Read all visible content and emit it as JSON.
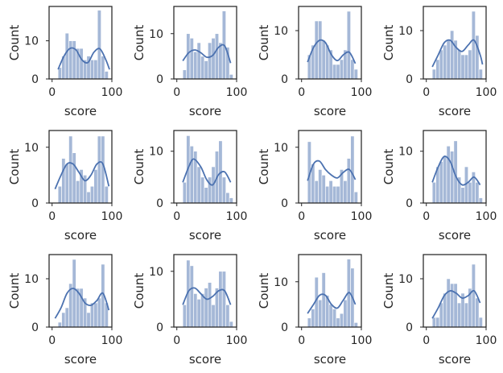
{
  "chart_data": [
    {
      "type": "bar",
      "kind": "histogram+kde",
      "xlabel": "score",
      "ylabel": "Count",
      "xticks": [
        0,
        100
      ],
      "yticks": [
        0,
        10
      ],
      "xlim": [
        -5,
        100
      ],
      "ylim": [
        0,
        19
      ],
      "bins": [
        [
          10,
          16,
          3
        ],
        [
          16,
          22,
          6
        ],
        [
          22,
          28,
          12
        ],
        [
          28,
          34,
          10
        ],
        [
          34,
          40,
          10
        ],
        [
          40,
          46,
          8
        ],
        [
          46,
          52,
          8
        ],
        [
          52,
          58,
          5
        ],
        [
          58,
          64,
          6
        ],
        [
          64,
          70,
          5
        ],
        [
          70,
          76,
          5
        ],
        [
          76,
          82,
          18
        ],
        [
          82,
          88,
          6
        ],
        [
          88,
          94,
          2
        ]
      ],
      "kde": [
        [
          10,
          2.5
        ],
        [
          20,
          6
        ],
        [
          30,
          8
        ],
        [
          40,
          7.6
        ],
        [
          50,
          5
        ],
        [
          60,
          4.3
        ],
        [
          70,
          7
        ],
        [
          80,
          7.9
        ],
        [
          90,
          5
        ],
        [
          96,
          2.5
        ]
      ]
    },
    {
      "type": "bar",
      "kind": "histogram+kde",
      "xlabel": "score",
      "ylabel": "Count",
      "xticks": [
        0,
        100
      ],
      "yticks": [
        0,
        10
      ],
      "xlim": [
        -5,
        100
      ],
      "ylim": [
        0,
        16
      ],
      "bins": [
        [
          10,
          16,
          2
        ],
        [
          16,
          22,
          10
        ],
        [
          22,
          28,
          9
        ],
        [
          28,
          34,
          6
        ],
        [
          34,
          40,
          8
        ],
        [
          40,
          46,
          5
        ],
        [
          46,
          52,
          4
        ],
        [
          52,
          58,
          8
        ],
        [
          58,
          64,
          9
        ],
        [
          64,
          70,
          10
        ],
        [
          70,
          76,
          8
        ],
        [
          76,
          82,
          15
        ],
        [
          82,
          88,
          7
        ],
        [
          88,
          94,
          1
        ]
      ],
      "kde": [
        [
          10,
          4
        ],
        [
          20,
          5.8
        ],
        [
          30,
          6.4
        ],
        [
          40,
          5.8
        ],
        [
          50,
          4.8
        ],
        [
          60,
          5.2
        ],
        [
          70,
          7
        ],
        [
          80,
          7.3
        ],
        [
          90,
          3.5
        ]
      ]
    },
    {
      "type": "bar",
      "kind": "histogram+kde",
      "xlabel": "score",
      "ylabel": "Count",
      "xticks": [
        0,
        100
      ],
      "yticks": [
        0,
        10
      ],
      "xlim": [
        -5,
        100
      ],
      "ylim": [
        0,
        15
      ],
      "bins": [
        [
          10,
          16,
          5
        ],
        [
          16,
          22,
          7
        ],
        [
          22,
          28,
          12
        ],
        [
          28,
          34,
          12
        ],
        [
          34,
          40,
          8
        ],
        [
          40,
          46,
          7
        ],
        [
          46,
          52,
          6
        ],
        [
          52,
          58,
          3
        ],
        [
          58,
          64,
          3
        ],
        [
          64,
          70,
          4
        ],
        [
          70,
          76,
          6
        ],
        [
          76,
          82,
          14
        ],
        [
          82,
          88,
          4
        ],
        [
          88,
          94,
          2
        ]
      ],
      "kde": [
        [
          10,
          3.5
        ],
        [
          20,
          6.5
        ],
        [
          30,
          8
        ],
        [
          40,
          7.5
        ],
        [
          50,
          5
        ],
        [
          60,
          3.8
        ],
        [
          70,
          5
        ],
        [
          80,
          5.5
        ],
        [
          90,
          3.2
        ]
      ]
    },
    {
      "type": "bar",
      "kind": "histogram+kde",
      "xlabel": "score",
      "ylabel": "Count",
      "xticks": [
        0,
        100
      ],
      "yticks": [
        0,
        10
      ],
      "xlim": [
        -5,
        100
      ],
      "ylim": [
        0,
        15
      ],
      "bins": [
        [
          10,
          16,
          2
        ],
        [
          16,
          22,
          4
        ],
        [
          22,
          28,
          6
        ],
        [
          28,
          34,
          7
        ],
        [
          34,
          40,
          8
        ],
        [
          40,
          46,
          10
        ],
        [
          46,
          52,
          8
        ],
        [
          52,
          58,
          6
        ],
        [
          58,
          64,
          5
        ],
        [
          64,
          70,
          5
        ],
        [
          70,
          76,
          6
        ],
        [
          76,
          82,
          14
        ],
        [
          82,
          88,
          9
        ],
        [
          88,
          94,
          2
        ]
      ],
      "kde": [
        [
          10,
          2.5
        ],
        [
          20,
          5
        ],
        [
          30,
          7.5
        ],
        [
          40,
          8
        ],
        [
          50,
          6.5
        ],
        [
          60,
          5.7
        ],
        [
          70,
          7
        ],
        [
          80,
          8
        ],
        [
          90,
          5
        ],
        [
          94,
          3
        ]
      ]
    },
    {
      "type": "bar",
      "kind": "histogram+kde",
      "xlabel": "score",
      "ylabel": "Count",
      "xticks": [
        0,
        100
      ],
      "yticks": [
        0,
        10
      ],
      "xlim": [
        -5,
        100
      ],
      "ylim": [
        0,
        13
      ],
      "bins": [
        [
          10,
          16,
          3
        ],
        [
          16,
          22,
          8
        ],
        [
          22,
          28,
          7
        ],
        [
          28,
          34,
          12
        ],
        [
          34,
          40,
          9
        ],
        [
          40,
          46,
          4
        ],
        [
          46,
          52,
          6
        ],
        [
          52,
          58,
          5
        ],
        [
          58,
          64,
          2
        ],
        [
          64,
          70,
          3
        ],
        [
          70,
          76,
          6
        ],
        [
          76,
          82,
          12
        ],
        [
          82,
          88,
          12
        ],
        [
          88,
          94,
          3
        ]
      ],
      "kde": [
        [
          5,
          2.5
        ],
        [
          15,
          5
        ],
        [
          25,
          7
        ],
        [
          35,
          7
        ],
        [
          45,
          5.5
        ],
        [
          55,
          4
        ],
        [
          65,
          5
        ],
        [
          75,
          7
        ],
        [
          85,
          7
        ],
        [
          95,
          3
        ]
      ]
    },
    {
      "type": "bar",
      "kind": "histogram+kde",
      "xlabel": "score",
      "ylabel": "Count",
      "xticks": [
        0,
        100
      ],
      "yticks": [
        0,
        10
      ],
      "xlim": [
        -5,
        100
      ],
      "ylim": [
        0,
        14
      ],
      "bins": [
        [
          10,
          16,
          4
        ],
        [
          16,
          22,
          13
        ],
        [
          22,
          28,
          11
        ],
        [
          28,
          34,
          10
        ],
        [
          34,
          40,
          7
        ],
        [
          40,
          46,
          5
        ],
        [
          46,
          52,
          3
        ],
        [
          52,
          58,
          5
        ],
        [
          58,
          64,
          7
        ],
        [
          64,
          70,
          10
        ],
        [
          70,
          76,
          12
        ],
        [
          76,
          82,
          5
        ],
        [
          82,
          88,
          2
        ],
        [
          88,
          94,
          1
        ]
      ],
      "kde": [
        [
          10,
          4
        ],
        [
          20,
          7
        ],
        [
          28,
          8.5
        ],
        [
          40,
          7
        ],
        [
          50,
          4.5
        ],
        [
          60,
          3.5
        ],
        [
          70,
          5.5
        ],
        [
          80,
          6
        ],
        [
          90,
          4
        ]
      ]
    },
    {
      "type": "bar",
      "kind": "histogram+kde",
      "xlabel": "score",
      "ylabel": "Count",
      "xticks": [
        0,
        100
      ],
      "yticks": [
        0,
        10
      ],
      "xlim": [
        -5,
        100
      ],
      "ylim": [
        0,
        13
      ],
      "bins": [
        [
          10,
          16,
          11
        ],
        [
          16,
          22,
          7
        ],
        [
          22,
          28,
          4
        ],
        [
          28,
          34,
          6
        ],
        [
          34,
          40,
          5
        ],
        [
          40,
          46,
          3
        ],
        [
          46,
          52,
          4
        ],
        [
          52,
          58,
          3
        ],
        [
          58,
          64,
          3
        ],
        [
          64,
          70,
          6
        ],
        [
          70,
          76,
          4
        ],
        [
          76,
          82,
          8
        ],
        [
          82,
          88,
          12
        ],
        [
          88,
          94,
          2
        ]
      ],
      "kde": [
        [
          10,
          4
        ],
        [
          20,
          7
        ],
        [
          30,
          7.5
        ],
        [
          40,
          6
        ],
        [
          50,
          5
        ],
        [
          60,
          4.5
        ],
        [
          70,
          5.5
        ],
        [
          80,
          6
        ],
        [
          90,
          4.2
        ]
      ]
    },
    {
      "type": "bar",
      "kind": "histogram+kde",
      "xlabel": "score",
      "ylabel": "Count",
      "xticks": [
        0,
        100
      ],
      "yticks": [
        0,
        10
      ],
      "xlim": [
        -5,
        100
      ],
      "ylim": [
        0,
        14
      ],
      "bins": [
        [
          10,
          16,
          4
        ],
        [
          16,
          22,
          7
        ],
        [
          22,
          28,
          8
        ],
        [
          28,
          34,
          9
        ],
        [
          34,
          40,
          11
        ],
        [
          40,
          46,
          10
        ],
        [
          46,
          52,
          12
        ],
        [
          52,
          58,
          5
        ],
        [
          58,
          64,
          3
        ],
        [
          64,
          70,
          7
        ],
        [
          70,
          76,
          4
        ],
        [
          76,
          82,
          6
        ],
        [
          82,
          88,
          4
        ],
        [
          88,
          94,
          1
        ]
      ],
      "kde": [
        [
          10,
          4
        ],
        [
          20,
          7
        ],
        [
          30,
          9
        ],
        [
          40,
          8
        ],
        [
          50,
          5
        ],
        [
          60,
          3.5
        ],
        [
          70,
          4
        ],
        [
          80,
          5
        ],
        [
          90,
          3.5
        ]
      ]
    },
    {
      "type": "bar",
      "kind": "histogram+kde",
      "xlabel": "score",
      "ylabel": "Count",
      "xticks": [
        0,
        100
      ],
      "yticks": [
        0,
        10
      ],
      "xlim": [
        -5,
        100
      ],
      "ylim": [
        0,
        15
      ],
      "bins": [
        [
          10,
          16,
          1
        ],
        [
          16,
          22,
          3
        ],
        [
          22,
          28,
          4
        ],
        [
          28,
          34,
          9
        ],
        [
          34,
          40,
          14
        ],
        [
          40,
          46,
          8
        ],
        [
          46,
          52,
          8
        ],
        [
          52,
          58,
          6
        ],
        [
          58,
          64,
          3
        ],
        [
          64,
          70,
          5
        ],
        [
          70,
          76,
          5
        ],
        [
          76,
          82,
          6
        ],
        [
          82,
          88,
          13
        ],
        [
          88,
          94,
          5
        ]
      ],
      "kde": [
        [
          5,
          1.8
        ],
        [
          15,
          4
        ],
        [
          25,
          7
        ],
        [
          35,
          8
        ],
        [
          45,
          7
        ],
        [
          55,
          5
        ],
        [
          65,
          4.5
        ],
        [
          75,
          5.5
        ],
        [
          85,
          7
        ],
        [
          95,
          3.5
        ]
      ]
    },
    {
      "type": "bar",
      "kind": "histogram+kde",
      "xlabel": "score",
      "ylabel": "Count",
      "xticks": [
        0,
        100
      ],
      "yticks": [
        0,
        10
      ],
      "xlim": [
        -5,
        100
      ],
      "ylim": [
        0,
        13
      ],
      "bins": [
        [
          10,
          16,
          4
        ],
        [
          16,
          22,
          12
        ],
        [
          22,
          28,
          11
        ],
        [
          28,
          34,
          6
        ],
        [
          34,
          40,
          5
        ],
        [
          40,
          46,
          6
        ],
        [
          46,
          52,
          7
        ],
        [
          52,
          58,
          8
        ],
        [
          58,
          64,
          4
        ],
        [
          64,
          70,
          7
        ],
        [
          70,
          76,
          10
        ],
        [
          76,
          82,
          10
        ],
        [
          82,
          88,
          4
        ],
        [
          88,
          94,
          1
        ]
      ],
      "kde": [
        [
          10,
          4
        ],
        [
          20,
          6.5
        ],
        [
          30,
          7
        ],
        [
          40,
          6
        ],
        [
          50,
          5
        ],
        [
          60,
          5.5
        ],
        [
          70,
          6.5
        ],
        [
          80,
          6.5
        ],
        [
          90,
          4
        ]
      ]
    },
    {
      "type": "bar",
      "kind": "histogram+kde",
      "xlabel": "score",
      "ylabel": "Count",
      "xticks": [
        0,
        100
      ],
      "yticks": [
        0,
        10
      ],
      "xlim": [
        -5,
        100
      ],
      "ylim": [
        0,
        16
      ],
      "bins": [
        [
          10,
          16,
          2
        ],
        [
          16,
          22,
          4
        ],
        [
          22,
          28,
          11
        ],
        [
          28,
          34,
          6
        ],
        [
          34,
          40,
          12
        ],
        [
          40,
          46,
          7
        ],
        [
          46,
          52,
          5
        ],
        [
          52,
          58,
          4
        ],
        [
          58,
          64,
          2
        ],
        [
          64,
          70,
          3
        ],
        [
          70,
          76,
          6
        ],
        [
          76,
          82,
          15
        ],
        [
          82,
          88,
          13
        ],
        [
          88,
          94,
          1
        ]
      ],
      "kde": [
        [
          10,
          3
        ],
        [
          20,
          5
        ],
        [
          30,
          7
        ],
        [
          40,
          7
        ],
        [
          50,
          5
        ],
        [
          60,
          4.2
        ],
        [
          70,
          6
        ],
        [
          80,
          7.6
        ],
        [
          90,
          5
        ]
      ]
    },
    {
      "type": "bar",
      "kind": "histogram+kde",
      "xlabel": "score",
      "ylabel": "Count",
      "xticks": [
        0,
        100
      ],
      "yticks": [
        0,
        10
      ],
      "xlim": [
        -5,
        100
      ],
      "ylim": [
        0,
        15
      ],
      "bins": [
        [
          10,
          16,
          2
        ],
        [
          16,
          22,
          2
        ],
        [
          22,
          28,
          5
        ],
        [
          28,
          34,
          7
        ],
        [
          34,
          40,
          10
        ],
        [
          40,
          46,
          9
        ],
        [
          46,
          52,
          9
        ],
        [
          52,
          58,
          5
        ],
        [
          58,
          64,
          7
        ],
        [
          64,
          70,
          5
        ],
        [
          70,
          76,
          8
        ],
        [
          76,
          82,
          13
        ],
        [
          82,
          88,
          6
        ],
        [
          88,
          94,
          2
        ]
      ],
      "kde": [
        [
          10,
          1.8
        ],
        [
          20,
          4
        ],
        [
          30,
          6.5
        ],
        [
          40,
          7.5
        ],
        [
          50,
          7
        ],
        [
          60,
          6
        ],
        [
          70,
          6.5
        ],
        [
          80,
          7.5
        ],
        [
          90,
          5
        ]
      ]
    }
  ]
}
